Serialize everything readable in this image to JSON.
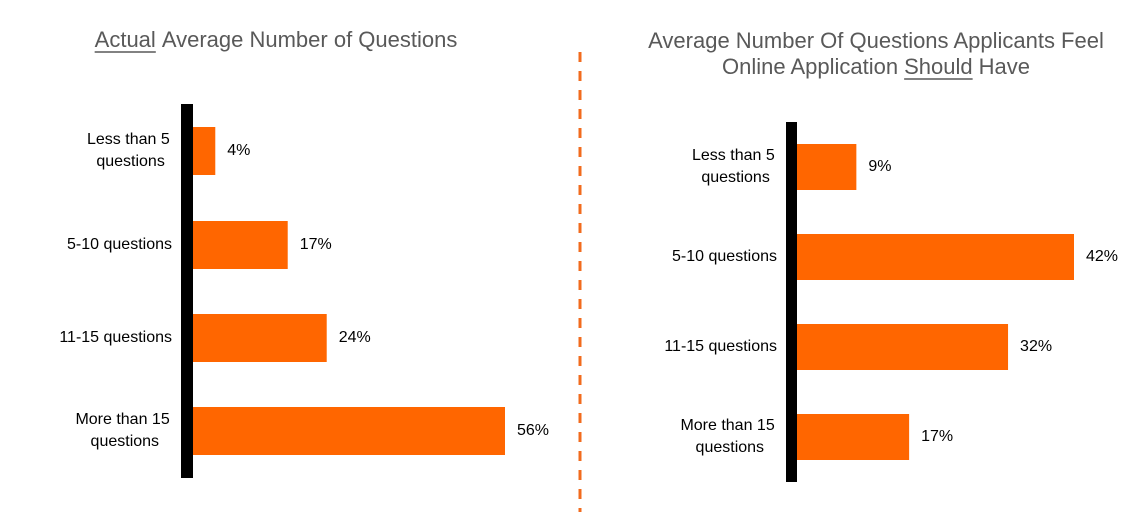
{
  "chart_data": [
    {
      "type": "bar",
      "orientation": "horizontal",
      "color": "#ff6600",
      "title": [
        [
          {
            "text": "Actual",
            "underline": true
          },
          {
            "text": "Average Number of Questions",
            "underline": false
          }
        ]
      ],
      "categories": [
        "Less than 5 questions",
        "5-10 questions",
        "11-15 questions",
        "More than 15 questions"
      ],
      "values": [
        4,
        17,
        24,
        56
      ],
      "value_labels": [
        "4%",
        "17%",
        "24%",
        "56%"
      ]
    },
    {
      "type": "bar",
      "orientation": "horizontal",
      "color": "#ff6600",
      "title": [
        [
          {
            "text": "Average Number Of Questions Applicants Feel",
            "underline": false
          }
        ],
        [
          {
            "text": "Online Application",
            "underline": false
          },
          {
            "text": "Should",
            "underline": true
          },
          {
            "text": "Have",
            "underline": false
          }
        ]
      ],
      "categories": [
        "Less than 5 questions",
        "5-10 questions",
        "11-15 questions",
        "More than 15 questions"
      ],
      "values": [
        9,
        42,
        32,
        17
      ],
      "value_labels": [
        "9%",
        "42%",
        "32%",
        "17%"
      ]
    }
  ]
}
